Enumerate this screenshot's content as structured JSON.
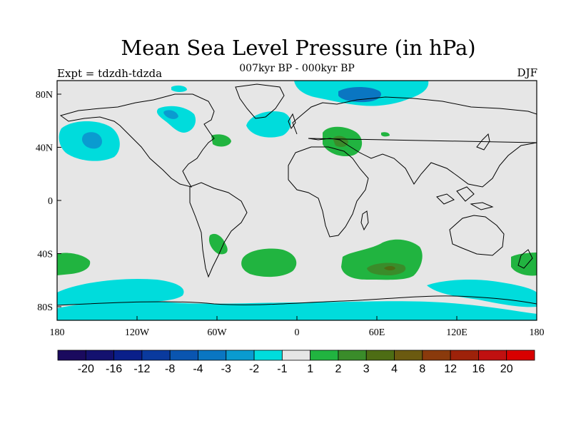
{
  "title": "Mean Sea Level Pressure (in hPa)",
  "subtitle": "007kyr BP - 000kyr BP",
  "experiment": "Expt = tdzdh-tdzda",
  "season": "DJF",
  "lat_axis": [
    "80N",
    "40N",
    "0",
    "40S",
    "80S"
  ],
  "lon_axis": [
    "180",
    "120W",
    "60W",
    "0",
    "60E",
    "120E",
    "180"
  ],
  "colorbar": {
    "colors": [
      "#1a0a5e",
      "#13116f",
      "#0a1f8a",
      "#0a3a9e",
      "#0a55b0",
      "#0a76c2",
      "#0a9bd0",
      "#00dcdc",
      "#e6e6e6",
      "#21b440",
      "#3a8c2a",
      "#4d6d14",
      "#6b5a10",
      "#8a3a0c",
      "#9e220a",
      "#c01010",
      "#d80000"
    ],
    "labels": [
      "-20",
      "-16",
      "-12",
      "-8",
      "-4",
      "-3",
      "-2",
      "-1",
      "1",
      "2",
      "3",
      "4",
      "8",
      "12",
      "16",
      "20"
    ]
  },
  "colors": {
    "ocean_background": "#e6e6e6",
    "cyan_neg1": "#00dcdc",
    "blue_neg2": "#0a9bd0",
    "blue_neg3": "#0a76c2",
    "green_pos1": "#21b440",
    "green_pos2": "#3a8c2a",
    "coast": "#000000"
  }
}
